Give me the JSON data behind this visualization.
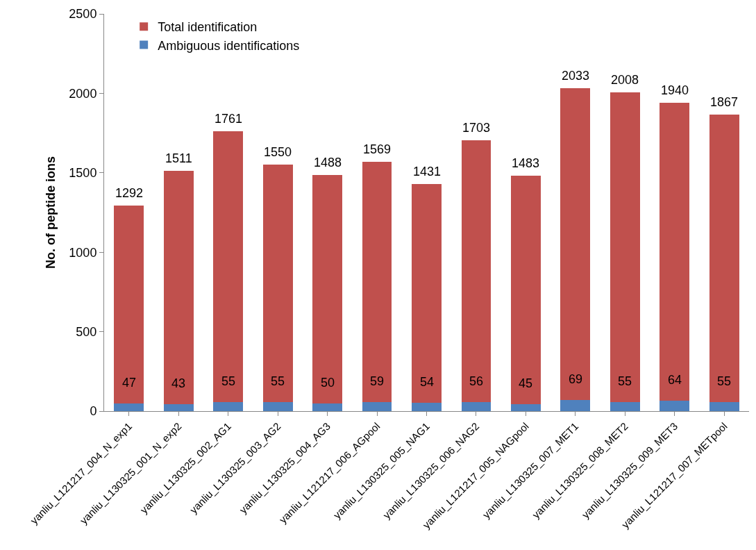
{
  "chart_data": {
    "type": "bar",
    "ylabel": "No. of peptide ions",
    "stacked": true,
    "legend": "top left",
    "grid": false,
    "categories": [
      "yanliu_L121217_004_N_exp1",
      "yanliu_L130325_001_N_exp2",
      "yanliu_L130325_002_AG1",
      "yanliu_L130325_003_AG2",
      "yanliu_L130325_004_AG3",
      "yanliu_L121217_006_AGpool",
      "yanliu_L130325_005_NAG1",
      "yanliu_L130325_006_NAG2",
      "yanliu_L121217_005_NAGpool",
      "yanliu_L130325_007_MET1",
      "yanliu_L130325_008_MET2",
      "yanliu_L130325_009_MET3",
      "yanliu_L121217_007_METpool"
    ],
    "series": [
      {
        "name": "Ambiguous identifications",
        "color": "#4f81bd",
        "values": [
          47,
          43,
          55,
          55,
          50,
          59,
          54,
          56,
          45,
          69,
          55,
          64,
          55
        ],
        "value_labels": [
          "47",
          "43",
          "55",
          "55",
          "50",
          "59",
          "54",
          "56",
          "45",
          "69",
          "55",
          "64",
          "55"
        ]
      },
      {
        "name": "Total identification",
        "color": "#c0504d",
        "values": [
          1245,
          1468,
          1706,
          1495,
          1438,
          1510,
          1377,
          1647,
          1438,
          1964,
          1953,
          1876,
          1812
        ]
      }
    ],
    "totals": [
      "1292",
      "1511",
      "1761",
      "1550",
      "1488",
      "1569",
      "1431",
      "1703",
      "1483",
      "2033",
      "2008",
      "1940",
      "1867"
    ],
    "ylim": [
      0,
      2500
    ],
    "yticks": [
      0,
      500,
      1000,
      1500,
      2000,
      2500
    ]
  }
}
